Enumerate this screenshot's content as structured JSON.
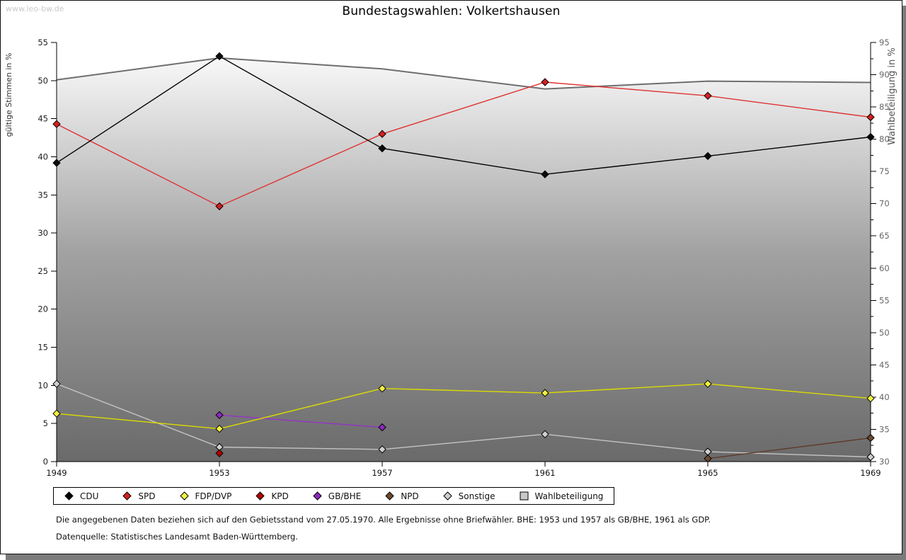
{
  "watermark": "www.leo-bw.de",
  "title": "Bundestagswahlen: Volkertshausen",
  "footnotes": {
    "line1": "Die angegebenen Daten beziehen sich auf den Gebietsstand vom 27.05.1970. Alle Ergebnisse ohne Briefwähler. BHE: 1953 und 1957 als GB/BHE, 1961 als GDP.",
    "line2": "Datenquelle: Statistisches Landesamt Baden-Württemberg."
  },
  "legend": {
    "items": [
      {
        "label": "CDU",
        "marker": "diamond",
        "color": "#000000"
      },
      {
        "label": "SPD",
        "marker": "diamond",
        "color": "#d42020"
      },
      {
        "label": "FDP/DVP",
        "marker": "diamond",
        "color": "#f0f040"
      },
      {
        "label": "KPD",
        "marker": "diamond",
        "color": "#b00000"
      },
      {
        "label": "GB/BHE",
        "marker": "diamond",
        "color": "#8c28c0"
      },
      {
        "label": "NPD",
        "marker": "diamond",
        "color": "#6b4a30"
      },
      {
        "label": "Sonstige",
        "marker": "diamond",
        "color": "#cfcfcf"
      },
      {
        "label": "Wahlbeteiligung",
        "marker": "square",
        "color": "#c8c8c8"
      }
    ]
  },
  "chart_data": {
    "type": "line",
    "title": "Bundestagswahlen: Volkertshausen",
    "x": [
      1949,
      1953,
      1957,
      1961,
      1965,
      1969
    ],
    "left_axis": {
      "label": "gültige Stimmen in %",
      "min": 0,
      "max": 55,
      "ticks": [
        0,
        5,
        10,
        15,
        20,
        25,
        30,
        35,
        40,
        45,
        50,
        55
      ]
    },
    "right_axis": {
      "label": "Wahlbeteiligung in %",
      "min": 30,
      "max": 95,
      "ticks": [
        30,
        35,
        40,
        45,
        50,
        55,
        60,
        65,
        70,
        75,
        80,
        85,
        90,
        95
      ],
      "minor_ticks": [
        32.5,
        37.5,
        42.5,
        47.5,
        52.5,
        57.5,
        62.5,
        67.5,
        72.5,
        77.5,
        82.5,
        87.5,
        92.5
      ]
    },
    "grid": false,
    "legend_position": "bottom",
    "series": [
      {
        "name": "Wahlbeteiligung",
        "axis": "right",
        "area": true,
        "color": "#6e6e6e",
        "marker_fill": "#c8c8c8",
        "values": [
          89.2,
          92.6,
          90.9,
          87.8,
          89.0,
          88.8
        ]
      },
      {
        "name": "Sonstige",
        "axis": "left",
        "color": "#c4c4c4",
        "marker_fill": "#cfcfcf",
        "values": [
          10.2,
          1.9,
          1.6,
          3.6,
          1.3,
          0.6
        ]
      },
      {
        "name": "NPD",
        "axis": "left",
        "color": "#5f3a28",
        "marker_fill": "#6b4a30",
        "values": [
          null,
          null,
          null,
          null,
          0.4,
          3.1
        ]
      },
      {
        "name": "GB/BHE",
        "axis": "left",
        "color": "#9632c8",
        "marker_fill": "#8c28c0",
        "values": [
          null,
          6.1,
          4.5,
          null,
          null,
          null
        ]
      },
      {
        "name": "KPD",
        "axis": "left",
        "color": "#b00000",
        "marker_fill": "#b00000",
        "values": [
          null,
          1.1,
          null,
          null,
          null,
          null
        ]
      },
      {
        "name": "FDP/DVP",
        "axis": "left",
        "color": "#dcdc00",
        "marker_fill": "#f0f040",
        "values": [
          6.3,
          4.3,
          9.6,
          9.0,
          10.2,
          8.3
        ]
      },
      {
        "name": "SPD",
        "axis": "left",
        "color": "#e03232",
        "marker_fill": "#d42020",
        "values": [
          44.3,
          33.5,
          43.0,
          49.8,
          48.0,
          45.2
        ]
      },
      {
        "name": "CDU",
        "axis": "left",
        "color": "#000000",
        "marker_fill": "#0a0a0a",
        "values": [
          39.2,
          53.2,
          41.1,
          37.7,
          40.1,
          42.6
        ]
      }
    ]
  }
}
